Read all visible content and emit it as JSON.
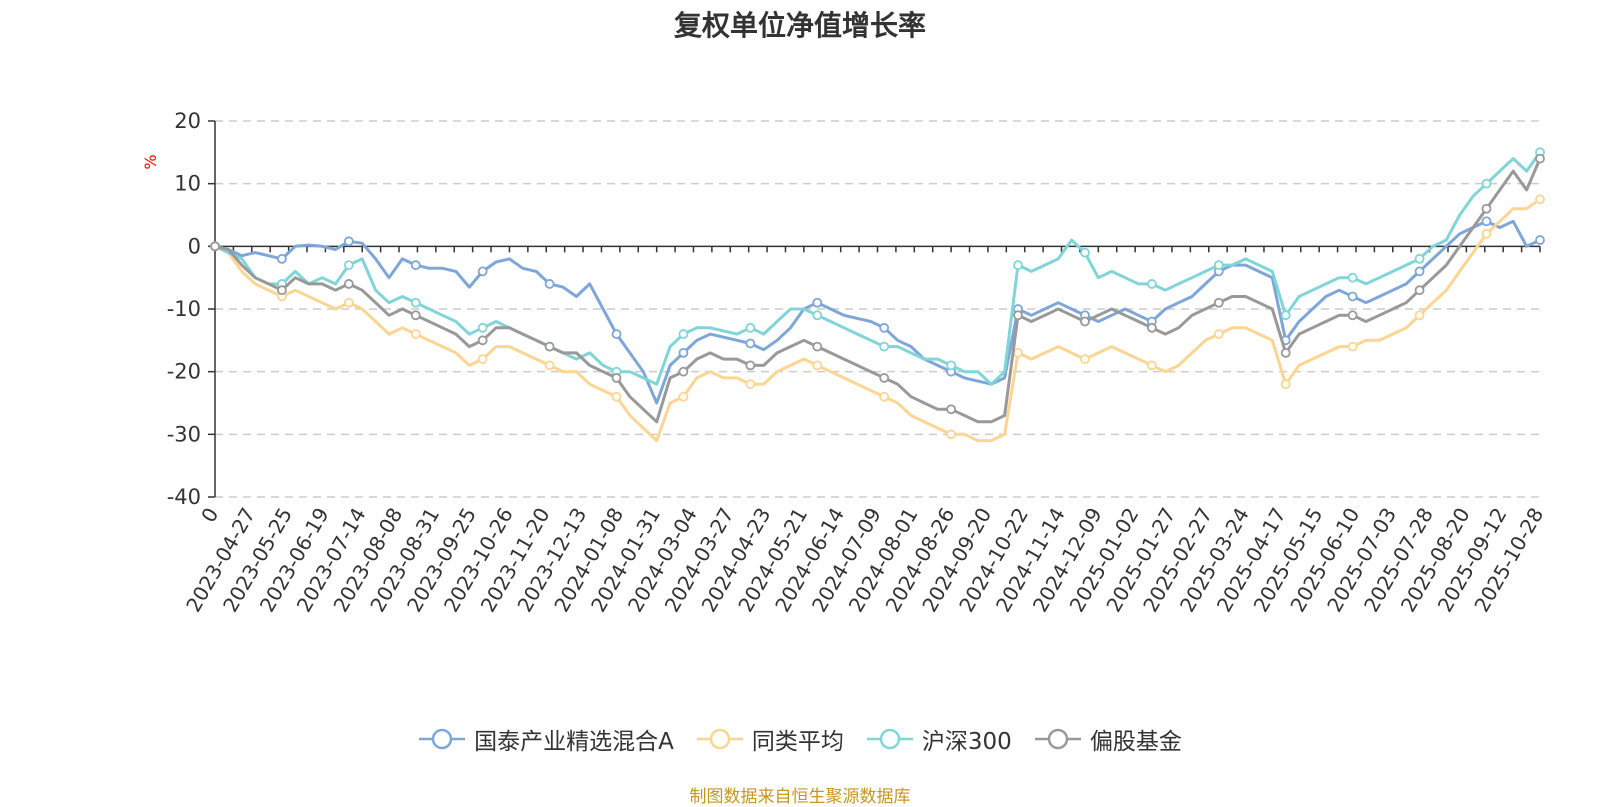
{
  "chart_data": {
    "type": "line",
    "title": "复权单位净值增长率",
    "ylabel": "%",
    "ylim": [
      -40,
      20
    ],
    "yticks": [
      20,
      10,
      0,
      -10,
      -20,
      -30,
      -40
    ],
    "xlabels": [
      "0",
      "2023-04-27",
      "2023-05-25",
      "2023-06-19",
      "2023-07-14",
      "2023-08-08",
      "2023-08-31",
      "2023-09-25",
      "2023-10-26",
      "2023-11-20",
      "2023-12-13",
      "2024-01-08",
      "2024-01-31",
      "2024-03-04",
      "2024-03-27",
      "2024-04-23",
      "2024-05-21",
      "2024-06-14",
      "2024-07-09",
      "2024-08-01",
      "2024-08-26",
      "2024-09-20",
      "2024-10-22",
      "2024-11-14",
      "2024-12-09",
      "2025-01-02",
      "2025-01-27",
      "2025-02-27",
      "2025-03-24",
      "2025-04-17",
      "2025-05-15",
      "2025-06-10",
      "2025-07-03",
      "2025-07-28",
      "2025-08-20",
      "2025-09-12",
      "2025-10-28"
    ],
    "grid": true,
    "legend_position": "bottom",
    "series": [
      {
        "name": "国泰产业精选混合A",
        "color": "#7ea6d9",
        "values": [
          0,
          -0.5,
          -1.5,
          -1,
          -1.5,
          -2,
          0,
          0.2,
          0,
          -0.5,
          0.8,
          0.5,
          -2,
          -5,
          -2,
          -3,
          -3.5,
          -3.5,
          -4,
          -6.5,
          -4,
          -2.5,
          -2,
          -3.5,
          -4,
          -6,
          -6.5,
          -8,
          -6,
          -10,
          -14,
          -17,
          -20,
          -25,
          -19,
          -17,
          -15,
          -14,
          -14.5,
          -15,
          -15.5,
          -16.5,
          -15,
          -13,
          -10,
          -9,
          -10,
          -11,
          -11.5,
          -12,
          -13,
          -15,
          -16,
          -18,
          -19,
          -20,
          -21,
          -21.5,
          -22,
          -21,
          -10,
          -11,
          -10,
          -9,
          -10,
          -11,
          -12,
          -11,
          -10,
          -11,
          -12,
          -10,
          -9,
          -8,
          -6,
          -4,
          -3,
          -3,
          -4,
          -5,
          -15,
          -12,
          -10,
          -8,
          -7,
          -8,
          -9,
          -8,
          -7,
          -6,
          -4,
          -2,
          0,
          2,
          3,
          4,
          3,
          4,
          0,
          1
        ]
      },
      {
        "name": "同类平均",
        "color": "#fcd593",
        "values": [
          0,
          -1,
          -4,
          -6,
          -7,
          -8,
          -7,
          -8,
          -9,
          -10,
          -9,
          -10,
          -12,
          -14,
          -13,
          -14,
          -15,
          -16,
          -17,
          -19,
          -18,
          -16,
          -16,
          -17,
          -18,
          -19,
          -20,
          -20,
          -22,
          -23,
          -24,
          -27,
          -29,
          -31,
          -25,
          -24,
          -21,
          -20,
          -21,
          -21,
          -22,
          -22,
          -20,
          -19,
          -18,
          -19,
          -20,
          -21,
          -22,
          -23,
          -24,
          -25,
          -27,
          -28,
          -29,
          -30,
          -30,
          -31,
          -31,
          -30,
          -17,
          -18,
          -17,
          -16,
          -17,
          -18,
          -17,
          -16,
          -17,
          -18,
          -19,
          -20,
          -19,
          -17,
          -15,
          -14,
          -13,
          -13,
          -14,
          -15,
          -22,
          -19,
          -18,
          -17,
          -16,
          -16,
          -15,
          -15,
          -14,
          -13,
          -11,
          -9,
          -7,
          -4,
          -1,
          2,
          4,
          6,
          6,
          7.5
        ]
      },
      {
        "name": "沪深300",
        "color": "#80d5d8",
        "values": [
          0,
          -1,
          -2,
          -5,
          -6,
          -6,
          -4,
          -6,
          -5,
          -6,
          -3,
          -2,
          -7,
          -9,
          -8,
          -9,
          -10,
          -11,
          -12,
          -14,
          -13,
          -12,
          -13,
          -14,
          -15,
          -16,
          -17,
          -18,
          -17,
          -19,
          -20,
          -20,
          -21,
          -22,
          -16,
          -14,
          -13,
          -13,
          -13.5,
          -14,
          -13,
          -14,
          -12,
          -10,
          -10,
          -11,
          -12,
          -13,
          -14,
          -15,
          -16,
          -16,
          -17,
          -18,
          -18,
          -19,
          -20,
          -20,
          -22,
          -20,
          -3,
          -4,
          -3,
          -2,
          1,
          -1,
          -5,
          -4,
          -5,
          -6,
          -6,
          -7,
          -6,
          -5,
          -4,
          -3,
          -3,
          -2,
          -3,
          -4,
          -11,
          -8,
          -7,
          -6,
          -5,
          -5,
          -6,
          -5,
          -4,
          -3,
          -2,
          0,
          1,
          5,
          8,
          10,
          12,
          14,
          12,
          15
        ]
      },
      {
        "name": "偏股基金",
        "color": "#999999",
        "values": [
          0,
          -0.5,
          -3,
          -5,
          -6,
          -7,
          -5,
          -6,
          -6,
          -7,
          -6,
          -7,
          -9,
          -11,
          -10,
          -11,
          -12,
          -13,
          -14,
          -16,
          -15,
          -13,
          -13,
          -14,
          -15,
          -16,
          -17,
          -17,
          -19,
          -20,
          -21,
          -24,
          -26,
          -28,
          -21,
          -20,
          -18,
          -17,
          -18,
          -18,
          -19,
          -19,
          -17,
          -16,
          -15,
          -16,
          -17,
          -18,
          -19,
          -20,
          -21,
          -22,
          -24,
          -25,
          -26,
          -26,
          -27,
          -28,
          -28,
          -27,
          -11,
          -12,
          -11,
          -10,
          -11,
          -12,
          -11,
          -10,
          -11,
          -12,
          -13,
          -14,
          -13,
          -11,
          -10,
          -9,
          -8,
          -8,
          -9,
          -10,
          -17,
          -14,
          -13,
          -12,
          -11,
          -11,
          -12,
          -11,
          -10,
          -9,
          -7,
          -5,
          -3,
          0,
          3,
          6,
          9,
          12,
          9,
          14
        ]
      }
    ]
  },
  "source_note": "制图数据来自恒生聚源数据库"
}
